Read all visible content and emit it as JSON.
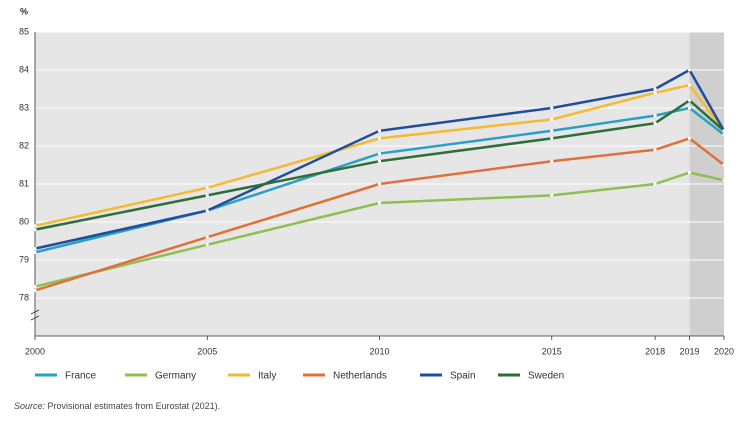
{
  "chart_data": {
    "type": "line",
    "y_label": "%",
    "x": [
      2000,
      2005,
      2010,
      2015,
      2018,
      2019,
      2020
    ],
    "xlim": [
      2000,
      2020
    ],
    "xticks": [
      2000,
      2005,
      2010,
      2015,
      2018,
      2019,
      2020
    ],
    "ylim": [
      77,
      85
    ],
    "yticks": [
      78,
      79,
      80,
      81,
      82,
      83,
      84,
      85
    ],
    "grid": true,
    "highlight_x": [
      2019,
      2020
    ],
    "series": [
      {
        "name": "France",
        "color": "#2aa0c8",
        "values": [
          79.2,
          80.3,
          81.8,
          82.4,
          82.8,
          83.0,
          82.3
        ]
      },
      {
        "name": "Germany",
        "color": "#8dc050",
        "values": [
          78.3,
          79.4,
          80.5,
          80.7,
          81.0,
          81.3,
          81.1
        ]
      },
      {
        "name": "Italy",
        "color": "#f5b932",
        "values": [
          79.9,
          80.9,
          82.2,
          82.7,
          83.4,
          83.6,
          82.4
        ]
      },
      {
        "name": "Netherlands",
        "color": "#e0703a",
        "values": [
          78.2,
          79.6,
          81.0,
          81.6,
          81.9,
          82.2,
          81.5
        ]
      },
      {
        "name": "Spain",
        "color": "#1f4e9c",
        "values": [
          79.3,
          80.3,
          82.4,
          83.0,
          83.5,
          84.0,
          82.4
        ]
      },
      {
        "name": "Sweden",
        "color": "#2e6e3a",
        "values": [
          79.8,
          80.7,
          81.6,
          82.2,
          82.6,
          83.2,
          82.4
        ]
      }
    ],
    "source_label": "Source:",
    "source_text": "Provisional estimates from Eurostat (2021)."
  }
}
